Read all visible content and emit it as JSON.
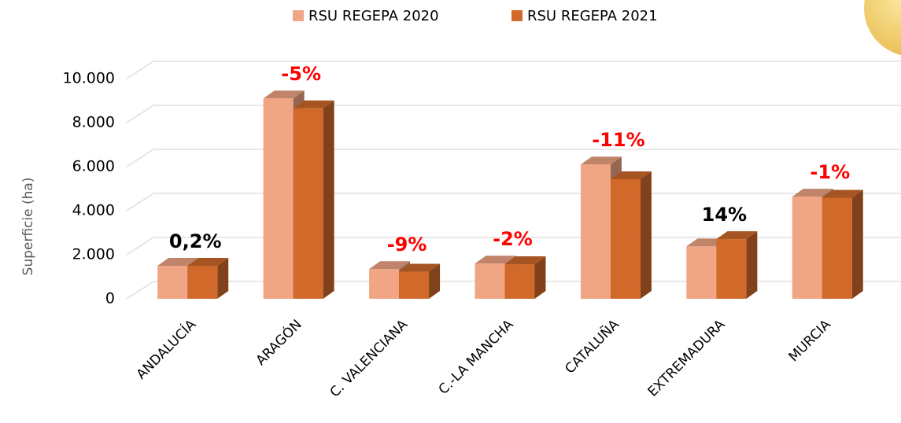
{
  "chart_data": {
    "type": "bar3d",
    "y_label": "Superficie (ha)",
    "categories": [
      "ANDALUCÍA",
      "ARAGÓN",
      "C. VALENCIANA",
      "C.-LA MANCHA",
      "CATALUÑA",
      "EXTREMADURA",
      "MURCIA"
    ],
    "series": [
      {
        "name": "RSU REGEPA 2020",
        "color": "#f0a584",
        "values": [
          1500,
          9100,
          1350,
          1600,
          6100,
          2380,
          4640
        ]
      },
      {
        "name": "RSU REGEPA 2021",
        "color": "#d0692a",
        "values": [
          1500,
          8650,
          1230,
          1570,
          5430,
          2710,
          4590
        ]
      }
    ],
    "change_labels": [
      "0,2%",
      "-5%",
      "-9%",
      "-2%",
      "-11%",
      "14%",
      "-1%"
    ],
    "change_label_colors": [
      "#000000",
      "#ff0000",
      "#ff0000",
      "#ff0000",
      "#ff0000",
      "#000000",
      "#ff0000"
    ],
    "ylim": [
      0,
      10000
    ],
    "yticks": [
      0,
      {
        "value": 2000,
        "label": "2.000"
      },
      {
        "value": 4000,
        "label": "4.000"
      },
      {
        "value": 6000,
        "label": "6.000"
      },
      {
        "value": 8000,
        "label": "8.000"
      },
      {
        "value": 10000,
        "label": "10.000"
      }
    ],
    "grid": true,
    "legend": "top"
  }
}
